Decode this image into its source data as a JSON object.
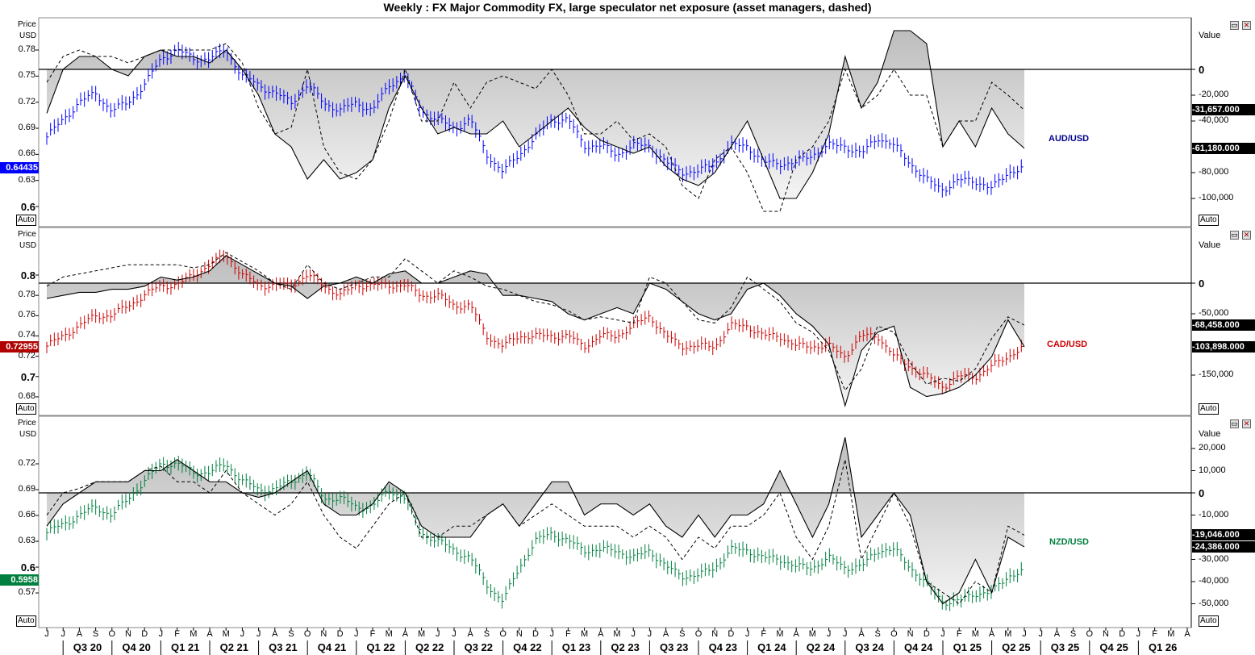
{
  "title": "Weekly : FX Major Commodity FX, large speculator net exposure (asset managers, dashed)",
  "axis": {
    "months": [
      "J",
      "J",
      "A",
      "S",
      "O",
      "N",
      "D",
      "J",
      "F",
      "M",
      "A",
      "M",
      "J",
      "J",
      "A",
      "S",
      "O",
      "N",
      "D",
      "J",
      "F",
      "M",
      "A",
      "M",
      "J",
      "J",
      "A",
      "S",
      "O",
      "N",
      "D",
      "J",
      "F",
      "M",
      "A",
      "M",
      "J",
      "J",
      "A",
      "S",
      "O",
      "N",
      "D",
      "J",
      "F",
      "M",
      "A",
      "M",
      "J",
      "J",
      "A",
      "S",
      "O",
      "N",
      "D",
      "J",
      "F",
      "M",
      "A",
      "M",
      "J",
      "J",
      "A",
      "S",
      "O",
      "N",
      "D",
      "J",
      "F",
      "M",
      "A"
    ],
    "quarters": [
      "Q3 20",
      "Q4 20",
      "Q1 21",
      "Q2 21",
      "Q3 21",
      "Q4 21",
      "Q1 22",
      "Q2 22",
      "Q3 22",
      "Q4 22",
      "Q1 23",
      "Q2 23",
      "Q3 23",
      "Q4 23",
      "Q1 24",
      "Q2 24",
      "Q3 24",
      "Q4 24",
      "Q1 25",
      "Q2 25",
      "Q3 25",
      "Q4 25",
      "Q1 26"
    ]
  },
  "chart_data": [
    {
      "type": "line",
      "name": "AUD/USD",
      "price_label": "Price",
      "price_unit": "USD",
      "value_label": "Value",
      "auto_label": "Auto",
      "price_color": "#0000ff",
      "price_ticks": [
        "0.78",
        "0.75",
        "0.72",
        "0.69",
        "0.66",
        "0.63",
        "0.6"
      ],
      "value_ticks": [
        "0",
        "-20,000",
        "-40,000",
        "-80,000",
        "-100,000"
      ],
      "last_price": "0.64435",
      "last_values": [
        "-31,657.000",
        "-61,180.000"
      ],
      "x": [
        "2020-06",
        "2020-07",
        "2020-08",
        "2020-09",
        "2020-10",
        "2020-11",
        "2020-12",
        "2021-01",
        "2021-02",
        "2021-03",
        "2021-04",
        "2021-05",
        "2021-06",
        "2021-07",
        "2021-08",
        "2021-09",
        "2021-10",
        "2021-11",
        "2021-12",
        "2022-01",
        "2022-02",
        "2022-03",
        "2022-04",
        "2022-05",
        "2022-06",
        "2022-07",
        "2022-08",
        "2022-09",
        "2022-10",
        "2022-11",
        "2022-12",
        "2023-01",
        "2023-02",
        "2023-03",
        "2023-04",
        "2023-05",
        "2023-06",
        "2023-07",
        "2023-08",
        "2023-09",
        "2023-10",
        "2023-11",
        "2023-12",
        "2024-01",
        "2024-02",
        "2024-03",
        "2024-04",
        "2024-05",
        "2024-06",
        "2024-07",
        "2024-08",
        "2024-09",
        "2024-10",
        "2024-11",
        "2024-12",
        "2025-01",
        "2025-02",
        "2025-03",
        "2025-04",
        "2025-05",
        "2025-06"
      ],
      "price": [
        0.68,
        0.7,
        0.72,
        0.73,
        0.71,
        0.72,
        0.74,
        0.77,
        0.78,
        0.77,
        0.77,
        0.78,
        0.75,
        0.74,
        0.73,
        0.72,
        0.74,
        0.72,
        0.71,
        0.72,
        0.71,
        0.74,
        0.75,
        0.71,
        0.7,
        0.69,
        0.7,
        0.66,
        0.64,
        0.66,
        0.68,
        0.7,
        0.7,
        0.67,
        0.67,
        0.66,
        0.67,
        0.67,
        0.65,
        0.64,
        0.64,
        0.65,
        0.67,
        0.67,
        0.65,
        0.65,
        0.65,
        0.66,
        0.67,
        0.67,
        0.66,
        0.68,
        0.67,
        0.65,
        0.63,
        0.62,
        0.63,
        0.63,
        0.62,
        0.64,
        0.644
      ],
      "net_large_spec": [
        -34000,
        0,
        10000,
        10000,
        0,
        -5000,
        10000,
        15000,
        10000,
        10000,
        5000,
        15000,
        0,
        -20000,
        -50000,
        -60000,
        -85000,
        -70000,
        -85000,
        -80000,
        -70000,
        -30000,
        -5000,
        -30000,
        -50000,
        -45000,
        -50000,
        -50000,
        -40000,
        -60000,
        -50000,
        -40000,
        -30000,
        -45000,
        -55000,
        -60000,
        -65000,
        -60000,
        -75000,
        -85000,
        -90000,
        -80000,
        -60000,
        -40000,
        -70000,
        -100000,
        -100000,
        -80000,
        -50000,
        10000,
        -30000,
        -10000,
        30000,
        30000,
        20000,
        -60000,
        -40000,
        -60000,
        -30000,
        -50000,
        -61180
      ],
      "net_asset_managers": [
        -10000,
        10000,
        15000,
        10000,
        10000,
        5000,
        10000,
        15000,
        15000,
        15000,
        15000,
        20000,
        5000,
        -30000,
        -50000,
        -45000,
        0,
        -60000,
        -80000,
        -85000,
        -70000,
        -40000,
        0,
        -40000,
        -40000,
        -10000,
        -30000,
        -10000,
        -5000,
        -10000,
        -15000,
        0,
        -20000,
        -50000,
        -50000,
        -40000,
        -55000,
        -50000,
        -60000,
        -90000,
        -100000,
        -70000,
        -60000,
        -80000,
        -110000,
        -110000,
        -70000,
        -60000,
        -40000,
        0,
        -30000,
        -20000,
        0,
        -20000,
        -20000,
        -60000,
        -40000,
        -40000,
        -10000,
        -20000,
        -31657
      ]
    },
    {
      "type": "line",
      "name": "CAD/USD",
      "price_label": "Price",
      "price_unit": "USD",
      "value_label": "Value",
      "auto_label": "Auto",
      "price_color": "#cc0000",
      "price_ticks": [
        "0.8",
        "0.78",
        "0.76",
        "0.74",
        "0.72",
        "0.7",
        "0.68"
      ],
      "value_ticks": [
        "0",
        "-50,000",
        "-150,000"
      ],
      "last_price": "0.72955",
      "last_values": [
        "-68,458.000",
        "-103,898.000"
      ],
      "x": [
        "2020-06",
        "2020-07",
        "2020-08",
        "2020-09",
        "2020-10",
        "2020-11",
        "2020-12",
        "2021-01",
        "2021-02",
        "2021-03",
        "2021-04",
        "2021-05",
        "2021-06",
        "2021-07",
        "2021-08",
        "2021-09",
        "2021-10",
        "2021-11",
        "2021-12",
        "2022-01",
        "2022-02",
        "2022-03",
        "2022-04",
        "2022-05",
        "2022-06",
        "2022-07",
        "2022-08",
        "2022-09",
        "2022-10",
        "2022-11",
        "2022-12",
        "2023-01",
        "2023-02",
        "2023-03",
        "2023-04",
        "2023-05",
        "2023-06",
        "2023-07",
        "2023-08",
        "2023-09",
        "2023-10",
        "2023-11",
        "2023-12",
        "2024-01",
        "2024-02",
        "2024-03",
        "2024-04",
        "2024-05",
        "2024-06",
        "2024-07",
        "2024-08",
        "2024-09",
        "2024-10",
        "2024-11",
        "2024-12",
        "2025-01",
        "2025-02",
        "2025-03",
        "2025-04",
        "2025-05",
        "2025-06"
      ],
      "price": [
        0.73,
        0.74,
        0.75,
        0.76,
        0.76,
        0.77,
        0.78,
        0.79,
        0.79,
        0.8,
        0.81,
        0.82,
        0.8,
        0.79,
        0.79,
        0.79,
        0.8,
        0.79,
        0.78,
        0.79,
        0.79,
        0.79,
        0.79,
        0.78,
        0.78,
        0.77,
        0.77,
        0.74,
        0.73,
        0.74,
        0.74,
        0.74,
        0.74,
        0.73,
        0.74,
        0.74,
        0.75,
        0.76,
        0.74,
        0.73,
        0.73,
        0.73,
        0.75,
        0.75,
        0.74,
        0.74,
        0.73,
        0.73,
        0.73,
        0.72,
        0.74,
        0.74,
        0.72,
        0.71,
        0.7,
        0.69,
        0.7,
        0.7,
        0.71,
        0.72,
        0.7296
      ],
      "net_large_spec": [
        -25000,
        -20000,
        -15000,
        -15000,
        -10000,
        -10000,
        -5000,
        10000,
        5000,
        10000,
        20000,
        45000,
        30000,
        15000,
        0,
        -5000,
        -25000,
        -5000,
        0,
        10000,
        0,
        15000,
        20000,
        0,
        0,
        10000,
        20000,
        15000,
        -20000,
        -20000,
        -25000,
        -30000,
        -50000,
        -60000,
        -50000,
        -40000,
        -50000,
        0,
        -10000,
        -30000,
        -50000,
        -60000,
        -50000,
        -10000,
        0,
        -20000,
        -50000,
        -70000,
        -100000,
        -200000,
        -110000,
        -80000,
        -70000,
        -170000,
        -185000,
        -180000,
        -170000,
        -150000,
        -120000,
        -60000,
        -103898
      ],
      "net_asset_managers": [
        -5000,
        10000,
        15000,
        20000,
        25000,
        30000,
        30000,
        30000,
        30000,
        25000,
        30000,
        50000,
        35000,
        20000,
        0,
        -10000,
        30000,
        0,
        -10000,
        0,
        10000,
        10000,
        40000,
        20000,
        0,
        20000,
        10000,
        -5000,
        -10000,
        -20000,
        -30000,
        -35000,
        -45000,
        -60000,
        -55000,
        -60000,
        -65000,
        10000,
        0,
        -30000,
        -60000,
        -65000,
        -40000,
        10000,
        -10000,
        -30000,
        -65000,
        -80000,
        -110000,
        -175000,
        -140000,
        -70000,
        -80000,
        -130000,
        -165000,
        -155000,
        -160000,
        -140000,
        -90000,
        -55000,
        -68458
      ]
    },
    {
      "type": "line",
      "name": "NZD/USD",
      "price_label": "Price",
      "price_unit": "USD",
      "value_label": "Value",
      "auto_label": "Auto",
      "price_color": "#008040",
      "price_ticks": [
        "0.72",
        "0.69",
        "0.66",
        "0.63",
        "0.6",
        "0.57"
      ],
      "value_ticks": [
        "20,000",
        "10,000",
        "0",
        "-10,000",
        "-30,000",
        "-40,000",
        "-50,000"
      ],
      "last_price": "0.5958",
      "last_values": [
        "-19,046.000",
        "-24,386.000"
      ],
      "x": [
        "2020-06",
        "2020-07",
        "2020-08",
        "2020-09",
        "2020-10",
        "2020-11",
        "2020-12",
        "2021-01",
        "2021-02",
        "2021-03",
        "2021-04",
        "2021-05",
        "2021-06",
        "2021-07",
        "2021-08",
        "2021-09",
        "2021-10",
        "2021-11",
        "2021-12",
        "2022-01",
        "2022-02",
        "2022-03",
        "2022-04",
        "2022-05",
        "2022-06",
        "2022-07",
        "2022-08",
        "2022-09",
        "2022-10",
        "2022-11",
        "2022-12",
        "2023-01",
        "2023-02",
        "2023-03",
        "2023-04",
        "2023-05",
        "2023-06",
        "2023-07",
        "2023-08",
        "2023-09",
        "2023-10",
        "2023-11",
        "2023-12",
        "2024-01",
        "2024-02",
        "2024-03",
        "2024-04",
        "2024-05",
        "2024-06",
        "2024-07",
        "2024-08",
        "2024-09",
        "2024-10",
        "2024-11",
        "2024-12",
        "2025-01",
        "2025-02",
        "2025-03",
        "2025-04",
        "2025-05",
        "2025-06"
      ],
      "price": [
        0.64,
        0.65,
        0.66,
        0.67,
        0.66,
        0.68,
        0.7,
        0.72,
        0.72,
        0.71,
        0.71,
        0.72,
        0.7,
        0.69,
        0.69,
        0.7,
        0.71,
        0.68,
        0.68,
        0.67,
        0.67,
        0.69,
        0.68,
        0.64,
        0.63,
        0.62,
        0.61,
        0.58,
        0.56,
        0.6,
        0.63,
        0.64,
        0.63,
        0.62,
        0.62,
        0.62,
        0.61,
        0.62,
        0.6,
        0.59,
        0.59,
        0.6,
        0.62,
        0.62,
        0.61,
        0.61,
        0.6,
        0.6,
        0.61,
        0.6,
        0.6,
        0.62,
        0.62,
        0.6,
        0.58,
        0.56,
        0.56,
        0.57,
        0.57,
        0.59,
        0.5958
      ],
      "net_large_spec": [
        -15000,
        -5000,
        0,
        5000,
        5000,
        5000,
        10000,
        10000,
        15000,
        10000,
        5000,
        5000,
        0,
        -2000,
        0,
        5000,
        10000,
        -5000,
        -10000,
        -10000,
        -5000,
        5000,
        0,
        -15000,
        -20000,
        -20000,
        -20000,
        -10000,
        -5000,
        -15000,
        -5000,
        5000,
        5000,
        -10000,
        -5000,
        -5000,
        -10000,
        -5000,
        -15000,
        -20000,
        -10000,
        -20000,
        -10000,
        -10000,
        -5000,
        10000,
        -5000,
        -20000,
        -5000,
        25000,
        -20000,
        -10000,
        0,
        -10000,
        -40000,
        -50000,
        -45000,
        -30000,
        -45000,
        -20000,
        -24386
      ],
      "net_asset_managers": [
        -10000,
        0,
        2000,
        5000,
        5000,
        5000,
        10000,
        12000,
        5000,
        5000,
        0,
        10000,
        0,
        -5000,
        -10000,
        -5000,
        5000,
        -10000,
        -20000,
        -25000,
        -15000,
        -5000,
        0,
        -20000,
        -20000,
        -15000,
        -15000,
        -10000,
        -5000,
        -15000,
        -10000,
        -5000,
        -10000,
        -15000,
        -15000,
        -15000,
        -20000,
        -15000,
        -20000,
        -30000,
        -20000,
        -25000,
        -15000,
        -15000,
        -10000,
        0,
        -20000,
        -30000,
        -15000,
        15000,
        -30000,
        -15000,
        0,
        -15000,
        -40000,
        -45000,
        -50000,
        -40000,
        -45000,
        -15000,
        -19046
      ]
    }
  ]
}
